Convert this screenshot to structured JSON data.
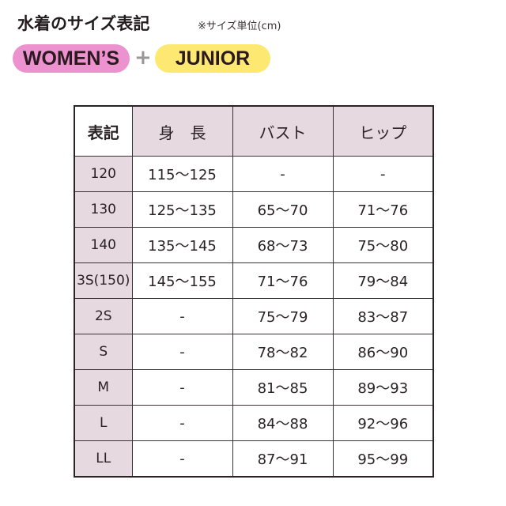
{
  "title": "水着のサイズ表記",
  "unit_note": "※サイズ単位(cm)",
  "categories": {
    "women": "WOMEN’S",
    "plus": "+",
    "junior": "JUNIOR"
  },
  "colors": {
    "women_pill": "#ec92cf",
    "junior_pill": "#fde872",
    "header_bg": "#e6d9df"
  },
  "table": {
    "headers": [
      "表記",
      "身　長",
      "バスト",
      "ヒップ"
    ],
    "rows": [
      [
        "120",
        "115～125",
        "-",
        "-"
      ],
      [
        "130",
        "125～135",
        "65～70",
        "71～76"
      ],
      [
        "140",
        "135～145",
        "68～73",
        "75～80"
      ],
      [
        "3S(150)",
        "145～155",
        "71～76",
        "79～84"
      ],
      [
        "2S",
        "-",
        "75～79",
        "83～87"
      ],
      [
        "S",
        "-",
        "78～82",
        "86～90"
      ],
      [
        "M",
        "-",
        "81～85",
        "89～93"
      ],
      [
        "L",
        "-",
        "84～88",
        "92～96"
      ],
      [
        "LL",
        "-",
        "87～91",
        "95～99"
      ]
    ]
  }
}
